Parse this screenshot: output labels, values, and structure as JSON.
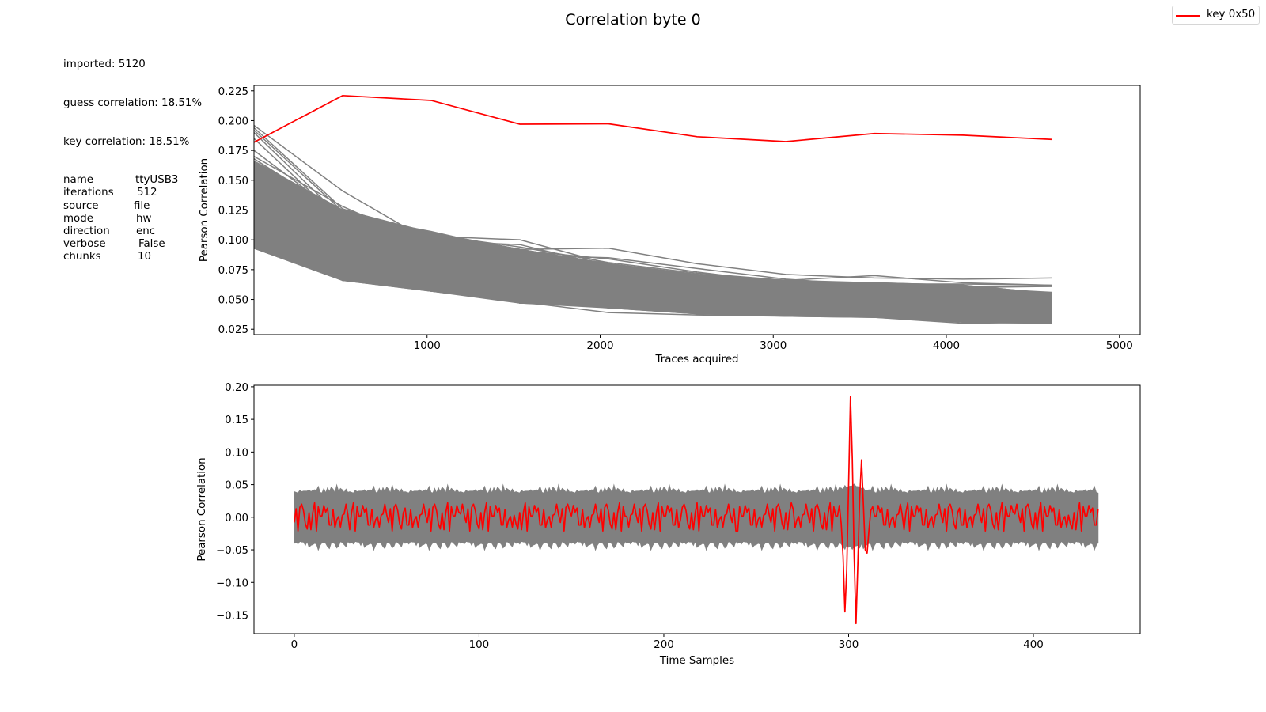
{
  "title": "Correlation byte 0",
  "legend": {
    "label": "key 0x50",
    "color": "#ff0000"
  },
  "info": {
    "imported": "imported: 5120",
    "guess_correlation": "guess correlation: 18.51%",
    "key_correlation": "key correlation: 18.51%",
    "params": [
      {
        "key": "name",
        "value": "ttyUSB3",
        "pad": 12
      },
      {
        "key": "iterations",
        "value": "512",
        "pad": 6
      },
      {
        "key": "source",
        "value": "file",
        "pad": 10
      },
      {
        "key": "mode",
        "value": "hw",
        "pad": 12
      },
      {
        "key": "direction",
        "value": "enc",
        "pad": 7
      },
      {
        "key": "verbose",
        "value": "False",
        "pad": 9
      },
      {
        "key": "chunks",
        "value": "10",
        "pad": 11
      }
    ]
  },
  "colors": {
    "key": "#ff0000",
    "guesses": "#808080",
    "axis": "#000000"
  },
  "chart_data": [
    {
      "type": "line",
      "title": "Correlation byte 0",
      "xlabel": "Traces acquired",
      "ylabel": "Pearson Correlation",
      "xlim": [
        0,
        5120
      ],
      "ylim": [
        0.0205,
        0.2295
      ],
      "xticks": [
        1000,
        2000,
        3000,
        4000,
        5000
      ],
      "xtick_labels": [
        "1000",
        "2000",
        "3000",
        "4000",
        "5000"
      ],
      "yticks": [
        0.025,
        0.05,
        0.075,
        0.1,
        0.125,
        0.15,
        0.175,
        0.2,
        0.225
      ],
      "ytick_labels": [
        "0.025",
        "0.050",
        "0.075",
        "0.100",
        "0.125",
        "0.150",
        "0.175",
        "0.200",
        "0.225"
      ],
      "x": [
        0,
        512,
        1024,
        1536,
        2048,
        2560,
        3072,
        3584,
        4096,
        4608
      ],
      "key_series": {
        "name": "key 0x50",
        "values": [
          0.1818,
          0.221,
          0.2169,
          0.197,
          0.1973,
          0.1865,
          0.1824,
          0.1892,
          0.1878,
          0.1842
        ]
      },
      "guess_band": {
        "upper": [
          0.166,
          0.125,
          0.106,
          0.092,
          0.08,
          0.071,
          0.066,
          0.064,
          0.062,
          0.055
        ],
        "lower": [
          0.093,
          0.066,
          0.057,
          0.047,
          0.043,
          0.038,
          0.036,
          0.035,
          0.031,
          0.03
        ]
      },
      "guess_outliers": [
        [
          0.196,
          0.141,
          0.098,
          0.091,
          0.084,
          0.073,
          0.064,
          0.062,
          0.061,
          0.061
        ],
        [
          0.194,
          0.126,
          0.103,
          0.1,
          0.08,
          0.07,
          0.065,
          0.063,
          0.063,
          0.062
        ],
        [
          0.192,
          0.124,
          0.106,
          0.092,
          0.093,
          0.08,
          0.071,
          0.068,
          0.067,
          0.068
        ],
        [
          0.19,
          0.118,
          0.1,
          0.089,
          0.077,
          0.07,
          0.066,
          0.07,
          0.064,
          0.062
        ],
        [
          0.185,
          0.115,
          0.099,
          0.096,
          0.078,
          0.069,
          0.063,
          0.06,
          0.06,
          0.061
        ],
        [
          0.175,
          0.119,
          0.104,
          0.094,
          0.081,
          0.072,
          0.066,
          0.063,
          0.06,
          0.056
        ],
        [
          0.17,
          0.128,
          0.095,
          0.087,
          0.085,
          0.076,
          0.067,
          0.062,
          0.058,
          0.053
        ],
        [
          0.168,
          0.121,
          0.107,
          0.09,
          0.078,
          0.068,
          0.062,
          0.061,
          0.056,
          0.052
        ],
        [
          0.16,
          0.112,
          0.093,
          0.085,
          0.073,
          0.066,
          0.06,
          0.058,
          0.054,
          0.05
        ],
        [
          0.15,
          0.108,
          0.092,
          0.082,
          0.071,
          0.064,
          0.058,
          0.055,
          0.052,
          0.048
        ],
        [
          0.14,
          0.104,
          0.088,
          0.078,
          0.068,
          0.061,
          0.056,
          0.052,
          0.049,
          0.046
        ],
        [
          0.13,
          0.098,
          0.084,
          0.074,
          0.066,
          0.058,
          0.054,
          0.05,
          0.047,
          0.044
        ],
        [
          0.12,
          0.092,
          0.079,
          0.07,
          0.062,
          0.055,
          0.051,
          0.048,
          0.045,
          0.042
        ],
        [
          0.11,
          0.086,
          0.074,
          0.066,
          0.059,
          0.052,
          0.049,
          0.046,
          0.043,
          0.04
        ],
        [
          0.101,
          0.078,
          0.068,
          0.061,
          0.055,
          0.049,
          0.046,
          0.043,
          0.04,
          0.037
        ],
        [
          0.098,
          0.072,
          0.062,
          0.054,
          0.048,
          0.044,
          0.041,
          0.039,
          0.036,
          0.034
        ],
        [
          0.096,
          0.069,
          0.06,
          0.05,
          0.046,
          0.041,
          0.039,
          0.037,
          0.034,
          0.032
        ],
        [
          0.093,
          0.067,
          0.057,
          0.048,
          0.039,
          0.037,
          0.036,
          0.035,
          0.03,
          0.031
        ]
      ]
    },
    {
      "type": "line",
      "xlabel": "Time Samples",
      "ylabel": "Pearson Correlation",
      "xlim": [
        -21.8,
        457.8
      ],
      "ylim": [
        -0.1785,
        0.2023
      ],
      "xticks": [
        0,
        100,
        200,
        300,
        400
      ],
      "xtick_labels": [
        "0",
        "100",
        "200",
        "300",
        "400"
      ],
      "yticks": [
        -0.15,
        -0.1,
        -0.05,
        0.0,
        0.05,
        0.1,
        0.15,
        0.2
      ],
      "ytick_labels": [
        "−0.15",
        "−0.10",
        "−0.05",
        "0.00",
        "0.05",
        "0.10",
        "0.15",
        "0.20"
      ],
      "n_samples": 436,
      "key_series_name": "key 0x50",
      "key_spike": [
        {
          "sample": 296,
          "value": -0.01
        },
        {
          "sample": 297,
          "value": -0.06
        },
        {
          "sample": 298,
          "value": -0.145
        },
        {
          "sample": 299,
          "value": -0.08
        },
        {
          "sample": 300,
          "value": 0.05
        },
        {
          "sample": 301,
          "value": 0.185
        },
        {
          "sample": 302,
          "value": 0.09
        },
        {
          "sample": 303,
          "value": -0.06
        },
        {
          "sample": 304,
          "value": -0.163
        },
        {
          "sample": 305,
          "value": -0.07
        },
        {
          "sample": 306,
          "value": 0.03
        },
        {
          "sample": 307,
          "value": 0.088
        },
        {
          "sample": 308,
          "value": 0.02
        },
        {
          "sample": 309,
          "value": -0.05
        },
        {
          "sample": 310,
          "value": -0.055
        },
        {
          "sample": 311,
          "value": -0.02
        },
        {
          "sample": 312,
          "value": 0.01
        }
      ],
      "key_pattern": [
        -0.008,
        0.016,
        0.003,
        -0.019,
        -0.016,
        0.01,
        0.014,
        0.013,
        0.002,
        0.005,
        0.007,
        -0.004,
        -0.01,
        -0.012,
        -0.021,
        0.002,
        0.02,
        0.022,
        0.001,
        -0.018,
        -0.012,
        0.015,
        0.018,
        0.004,
        -0.021,
        -0.015,
        0.007,
        0.012,
        0.02,
        0.008
      ],
      "envelope": {
        "upper_base": 0.037,
        "lower_base": -0.037,
        "upper_jitter": [
          0.002,
          0.005,
          0.0,
          0.004,
          0.001,
          0.007,
          0.003,
          0.0,
          0.006,
          0.002,
          0.009,
          0.001,
          0.004,
          0.012,
          0.002,
          0.0,
          0.005,
          0.003,
          0.008,
          0.001,
          0.004,
          0.006,
          0.0,
          0.01,
          0.002,
          0.003,
          0.007,
          0.001,
          0.005,
          0.002
        ],
        "lower_jitter": [
          0.003,
          0.0,
          0.006,
          0.002,
          0.008,
          0.001,
          0.004,
          0.011,
          0.002,
          0.0,
          0.005,
          0.003,
          0.007,
          0.001,
          0.009,
          0.002,
          0.004,
          0.0,
          0.006,
          0.013,
          0.002,
          0.005,
          0.001,
          0.003,
          0.008,
          0.0,
          0.004,
          0.006,
          0.002,
          0.01
        ],
        "bulge_center": 302,
        "bulge_upper": 0.048,
        "bulge_lower": -0.045
      }
    }
  ]
}
